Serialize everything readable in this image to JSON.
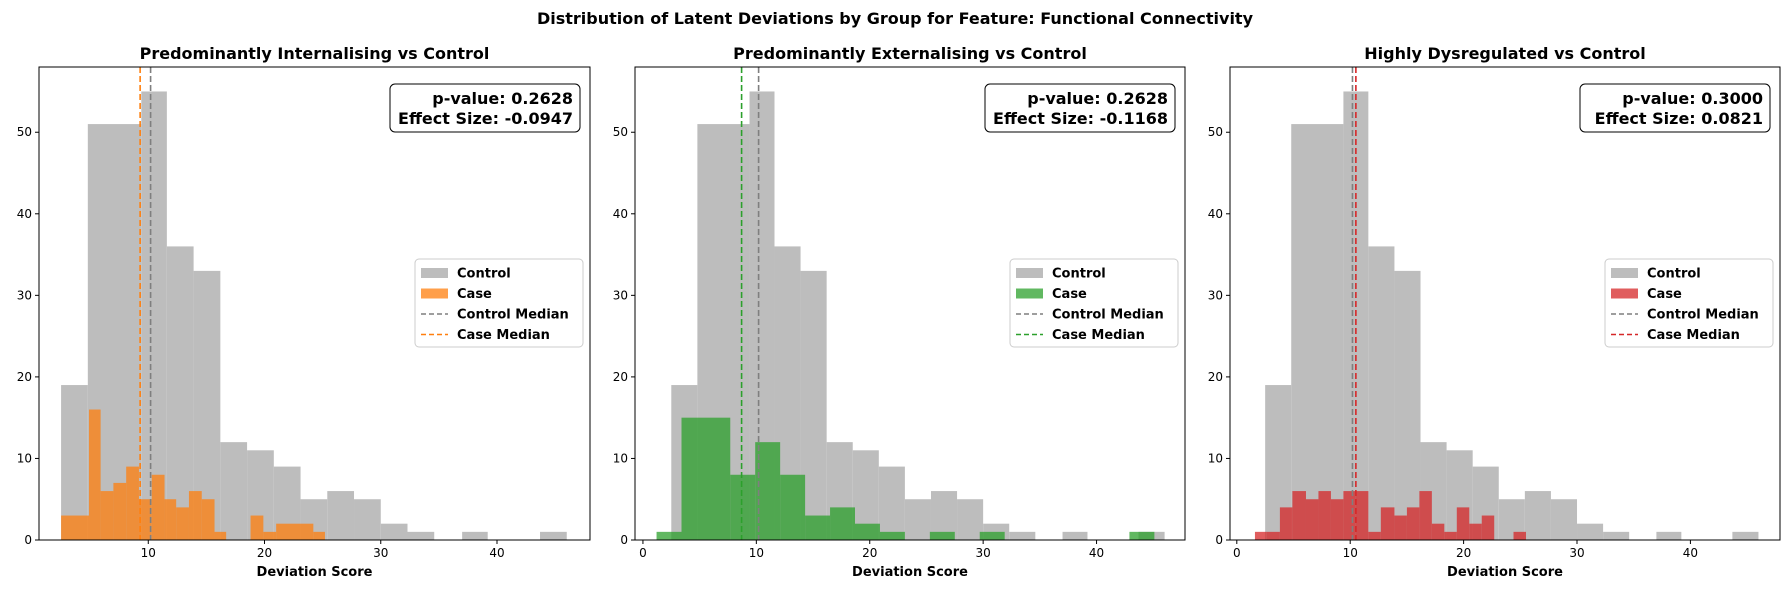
{
  "figure": {
    "suptitle": "Distribution of Latent Deviations by Group for Feature: Functional Connectivity"
  },
  "colors": {
    "control_fill": "#bdbdbd",
    "control_median": "#7f7f7f",
    "axis": "#000000"
  },
  "chart_data": [
    {
      "type": "histogram",
      "title": "Predominantly Internalising vs Control",
      "xlabel": "Deviation Score",
      "ylabel": "",
      "xlim": [
        0.6,
        48.0
      ],
      "ylim": [
        0,
        58
      ],
      "xticks": [
        10,
        20,
        30,
        40
      ],
      "yticks": [
        0,
        10,
        20,
        30,
        40,
        50
      ],
      "grid": false,
      "legend_position": "center right",
      "annotation": {
        "lines": [
          "p-value: 0.2628",
          "Effect Size: -0.0947"
        ],
        "position": "top-right"
      },
      "control_bins": [
        {
          "x0": 2.5,
          "x1": 4.8,
          "count": 19
        },
        {
          "x0": 4.8,
          "x1": 9.4,
          "count": 51
        },
        {
          "x0": 9.4,
          "x1": 11.6,
          "count": 55
        },
        {
          "x0": 11.6,
          "x1": 13.9,
          "count": 36
        },
        {
          "x0": 13.9,
          "x1": 16.2,
          "count": 33
        },
        {
          "x0": 16.2,
          "x1": 18.5,
          "count": 12
        },
        {
          "x0": 18.5,
          "x1": 20.8,
          "count": 11
        },
        {
          "x0": 20.8,
          "x1": 23.1,
          "count": 9
        },
        {
          "x0": 23.1,
          "x1": 25.4,
          "count": 5
        },
        {
          "x0": 25.4,
          "x1": 27.7,
          "count": 6
        },
        {
          "x0": 27.7,
          "x1": 30.0,
          "count": 5
        },
        {
          "x0": 30.0,
          "x1": 32.3,
          "count": 2
        },
        {
          "x0": 32.3,
          "x1": 34.6,
          "count": 1
        },
        {
          "x0": 37.0,
          "x1": 39.2,
          "count": 1
        },
        {
          "x0": 43.7,
          "x1": 46.0,
          "count": 1
        }
      ],
      "case": {
        "name": "Case",
        "color": "#ff7f0e",
        "bins": [
          {
            "x0": 2.5,
            "x1": 4.9,
            "count": 3
          },
          {
            "x0": 4.9,
            "x1": 5.9,
            "count": 16
          },
          {
            "x0": 5.9,
            "x1": 7.0,
            "count": 6
          },
          {
            "x0": 7.0,
            "x1": 8.1,
            "count": 7
          },
          {
            "x0": 8.1,
            "x1": 9.2,
            "count": 9
          },
          {
            "x0": 9.2,
            "x1": 10.3,
            "count": 5
          },
          {
            "x0": 10.3,
            "x1": 11.4,
            "count": 8
          },
          {
            "x0": 11.4,
            "x1": 12.4,
            "count": 5
          },
          {
            "x0": 12.4,
            "x1": 13.5,
            "count": 4
          },
          {
            "x0": 13.5,
            "x1": 14.6,
            "count": 6
          },
          {
            "x0": 14.6,
            "x1": 15.7,
            "count": 5
          },
          {
            "x0": 15.7,
            "x1": 16.7,
            "count": 1
          },
          {
            "x0": 16.7,
            "x1": 17.7,
            "count": 0
          },
          {
            "x0": 17.7,
            "x1": 18.8,
            "count": 0
          },
          {
            "x0": 18.8,
            "x1": 19.9,
            "count": 3
          },
          {
            "x0": 19.9,
            "x1": 21.0,
            "count": 1
          },
          {
            "x0": 21.0,
            "x1": 24.2,
            "count": 2
          },
          {
            "x0": 24.2,
            "x1": 25.2,
            "count": 1
          }
        ]
      },
      "control_median": 10.2,
      "case_median": 9.3,
      "legend": [
        "Control",
        "Case",
        "Control Median",
        "Case Median"
      ]
    },
    {
      "type": "histogram",
      "title": "Predominantly Externalising vs Control",
      "xlabel": "Deviation Score",
      "ylabel": "",
      "xlim": [
        -0.7,
        47.8
      ],
      "ylim": [
        0,
        58
      ],
      "xticks": [
        0,
        10,
        20,
        30,
        40
      ],
      "yticks": [
        0,
        10,
        20,
        30,
        40,
        50
      ],
      "grid": false,
      "legend_position": "center right",
      "annotation": {
        "lines": [
          "p-value: 0.2628",
          "Effect Size: -0.1168"
        ],
        "position": "top-right"
      },
      "control_bins": [
        {
          "x0": 2.5,
          "x1": 4.8,
          "count": 19
        },
        {
          "x0": 4.8,
          "x1": 9.4,
          "count": 51
        },
        {
          "x0": 9.4,
          "x1": 11.6,
          "count": 55
        },
        {
          "x0": 11.6,
          "x1": 13.9,
          "count": 36
        },
        {
          "x0": 13.9,
          "x1": 16.2,
          "count": 33
        },
        {
          "x0": 16.2,
          "x1": 18.5,
          "count": 12
        },
        {
          "x0": 18.5,
          "x1": 20.8,
          "count": 11
        },
        {
          "x0": 20.8,
          "x1": 23.1,
          "count": 9
        },
        {
          "x0": 23.1,
          "x1": 25.4,
          "count": 5
        },
        {
          "x0": 25.4,
          "x1": 27.7,
          "count": 6
        },
        {
          "x0": 27.7,
          "x1": 30.0,
          "count": 5
        },
        {
          "x0": 30.0,
          "x1": 32.3,
          "count": 2
        },
        {
          "x0": 32.3,
          "x1": 34.6,
          "count": 1
        },
        {
          "x0": 37.0,
          "x1": 39.2,
          "count": 1
        },
        {
          "x0": 43.7,
          "x1": 46.0,
          "count": 1
        }
      ],
      "case": {
        "name": "Case",
        "color": "#2ca02c",
        "bins": [
          {
            "x0": 1.2,
            "x1": 3.4,
            "count": 1
          },
          {
            "x0": 3.4,
            "x1": 7.7,
            "count": 15
          },
          {
            "x0": 7.7,
            "x1": 9.9,
            "count": 8
          },
          {
            "x0": 9.9,
            "x1": 12.1,
            "count": 12
          },
          {
            "x0": 12.1,
            "x1": 14.3,
            "count": 8
          },
          {
            "x0": 14.3,
            "x1": 16.5,
            "count": 3
          },
          {
            "x0": 16.5,
            "x1": 18.7,
            "count": 4
          },
          {
            "x0": 18.7,
            "x1": 20.9,
            "count": 2
          },
          {
            "x0": 20.9,
            "x1": 23.1,
            "count": 1
          },
          {
            "x0": 25.3,
            "x1": 27.5,
            "count": 1
          },
          {
            "x0": 29.7,
            "x1": 31.9,
            "count": 1
          },
          {
            "x0": 42.9,
            "x1": 45.1,
            "count": 1
          }
        ]
      },
      "control_median": 10.2,
      "case_median": 8.7,
      "legend": [
        "Control",
        "Case",
        "Control Median",
        "Case Median"
      ]
    },
    {
      "type": "histogram",
      "title": "Highly Dysregulated vs Control",
      "xlabel": "Deviation Score",
      "ylabel": "",
      "xlim": [
        -0.6,
        47.9
      ],
      "ylim": [
        0,
        58
      ],
      "xticks": [
        0,
        10,
        20,
        30,
        40
      ],
      "yticks": [
        0,
        10,
        20,
        30,
        40,
        50
      ],
      "grid": false,
      "legend_position": "center right",
      "annotation": {
        "lines": [
          "p-value: 0.3000",
          "Effect Size: 0.0821"
        ],
        "position": "top-right"
      },
      "control_bins": [
        {
          "x0": 2.5,
          "x1": 4.8,
          "count": 19
        },
        {
          "x0": 4.8,
          "x1": 9.4,
          "count": 51
        },
        {
          "x0": 9.4,
          "x1": 11.6,
          "count": 55
        },
        {
          "x0": 11.6,
          "x1": 13.9,
          "count": 36
        },
        {
          "x0": 13.9,
          "x1": 16.2,
          "count": 33
        },
        {
          "x0": 16.2,
          "x1": 18.5,
          "count": 12
        },
        {
          "x0": 18.5,
          "x1": 20.8,
          "count": 11
        },
        {
          "x0": 20.8,
          "x1": 23.1,
          "count": 9
        },
        {
          "x0": 23.1,
          "x1": 25.4,
          "count": 5
        },
        {
          "x0": 25.4,
          "x1": 27.7,
          "count": 6
        },
        {
          "x0": 27.7,
          "x1": 30.0,
          "count": 5
        },
        {
          "x0": 30.0,
          "x1": 32.3,
          "count": 2
        },
        {
          "x0": 32.3,
          "x1": 34.6,
          "count": 1
        },
        {
          "x0": 37.0,
          "x1": 39.2,
          "count": 1
        },
        {
          "x0": 43.7,
          "x1": 46.0,
          "count": 1
        }
      ],
      "case": {
        "name": "Case",
        "color": "#d62728",
        "bins": [
          {
            "x0": 1.6,
            "x1": 2.6,
            "count": 1
          },
          {
            "x0": 2.6,
            "x1": 3.8,
            "count": 1
          },
          {
            "x0": 3.8,
            "x1": 4.9,
            "count": 4
          },
          {
            "x0": 4.9,
            "x1": 6.1,
            "count": 6
          },
          {
            "x0": 6.1,
            "x1": 7.2,
            "count": 5
          },
          {
            "x0": 7.2,
            "x1": 8.3,
            "count": 6
          },
          {
            "x0": 8.3,
            "x1": 9.4,
            "count": 5
          },
          {
            "x0": 9.4,
            "x1": 10.5,
            "count": 6
          },
          {
            "x0": 10.5,
            "x1": 11.6,
            "count": 6
          },
          {
            "x0": 11.6,
            "x1": 12.7,
            "count": 1
          },
          {
            "x0": 12.7,
            "x1": 13.9,
            "count": 4
          },
          {
            "x0": 13.9,
            "x1": 15.0,
            "count": 3
          },
          {
            "x0": 15.0,
            "x1": 16.1,
            "count": 4
          },
          {
            "x0": 16.1,
            "x1": 17.2,
            "count": 6
          },
          {
            "x0": 17.2,
            "x1": 18.3,
            "count": 2
          },
          {
            "x0": 18.3,
            "x1": 19.4,
            "count": 1
          },
          {
            "x0": 19.4,
            "x1": 20.5,
            "count": 4
          },
          {
            "x0": 20.5,
            "x1": 21.6,
            "count": 2
          },
          {
            "x0": 21.6,
            "x1": 22.7,
            "count": 3
          },
          {
            "x0": 24.4,
            "x1": 25.5,
            "count": 1
          }
        ]
      },
      "control_median": 10.2,
      "case_median": 10.5,
      "legend": [
        "Control",
        "Case",
        "Control Median",
        "Case Median"
      ]
    }
  ]
}
